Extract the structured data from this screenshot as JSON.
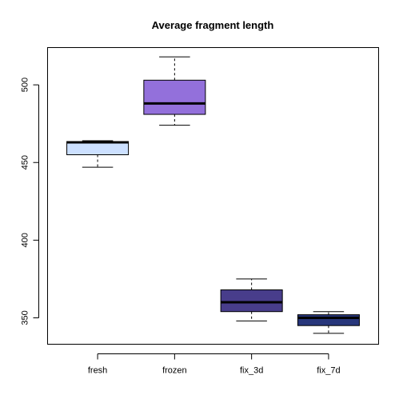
{
  "chart_data": {
    "type": "boxplot",
    "title": "Average fragment length",
    "xlabel": "",
    "ylabel": "",
    "categories": [
      "fresh",
      "frozen",
      "fix_3d",
      "fix_7d"
    ],
    "ylim": [
      333,
      524
    ],
    "yticks": [
      350,
      400,
      450,
      500
    ],
    "grid": false,
    "boxes": [
      {
        "name": "fresh",
        "min": 447,
        "q1": 455,
        "median": 463,
        "q3": 463.5,
        "max": 464,
        "color": "#cce0ff"
      },
      {
        "name": "frozen",
        "min": 474,
        "q1": 481,
        "median": 488,
        "q3": 503,
        "max": 518,
        "color": "#9370db"
      },
      {
        "name": "fix_3d",
        "min": 348,
        "q1": 354,
        "median": 360,
        "q3": 368,
        "max": 375,
        "color": "#483d8b"
      },
      {
        "name": "fix_7d",
        "min": 340,
        "q1": 345,
        "median": 350,
        "q3": 352,
        "max": 354,
        "color": "#27367b"
      }
    ]
  }
}
